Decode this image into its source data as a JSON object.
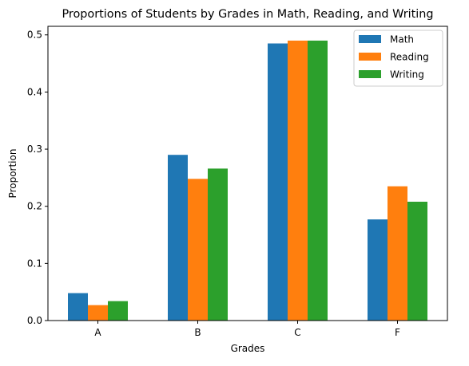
{
  "chart_data": {
    "type": "bar",
    "title": "Proportions of Students by Grades in Math, Reading, and Writing",
    "xlabel": "Grades",
    "ylabel": "Proportion",
    "categories": [
      "A",
      "B",
      "C",
      "F"
    ],
    "series": [
      {
        "name": "Math",
        "color": "#1f77b4",
        "values": [
          0.048,
          0.29,
          0.485,
          0.177
        ]
      },
      {
        "name": "Reading",
        "color": "#ff7f0e",
        "values": [
          0.027,
          0.248,
          0.49,
          0.235
        ]
      },
      {
        "name": "Writing",
        "color": "#2ca02c",
        "values": [
          0.034,
          0.266,
          0.49,
          0.208
        ]
      }
    ],
    "ylim": [
      0,
      0.515
    ],
    "yticks": [
      "0.0",
      "0.1",
      "0.2",
      "0.3",
      "0.4",
      "0.5"
    ],
    "legend_position": "top-right",
    "grid": false
  }
}
